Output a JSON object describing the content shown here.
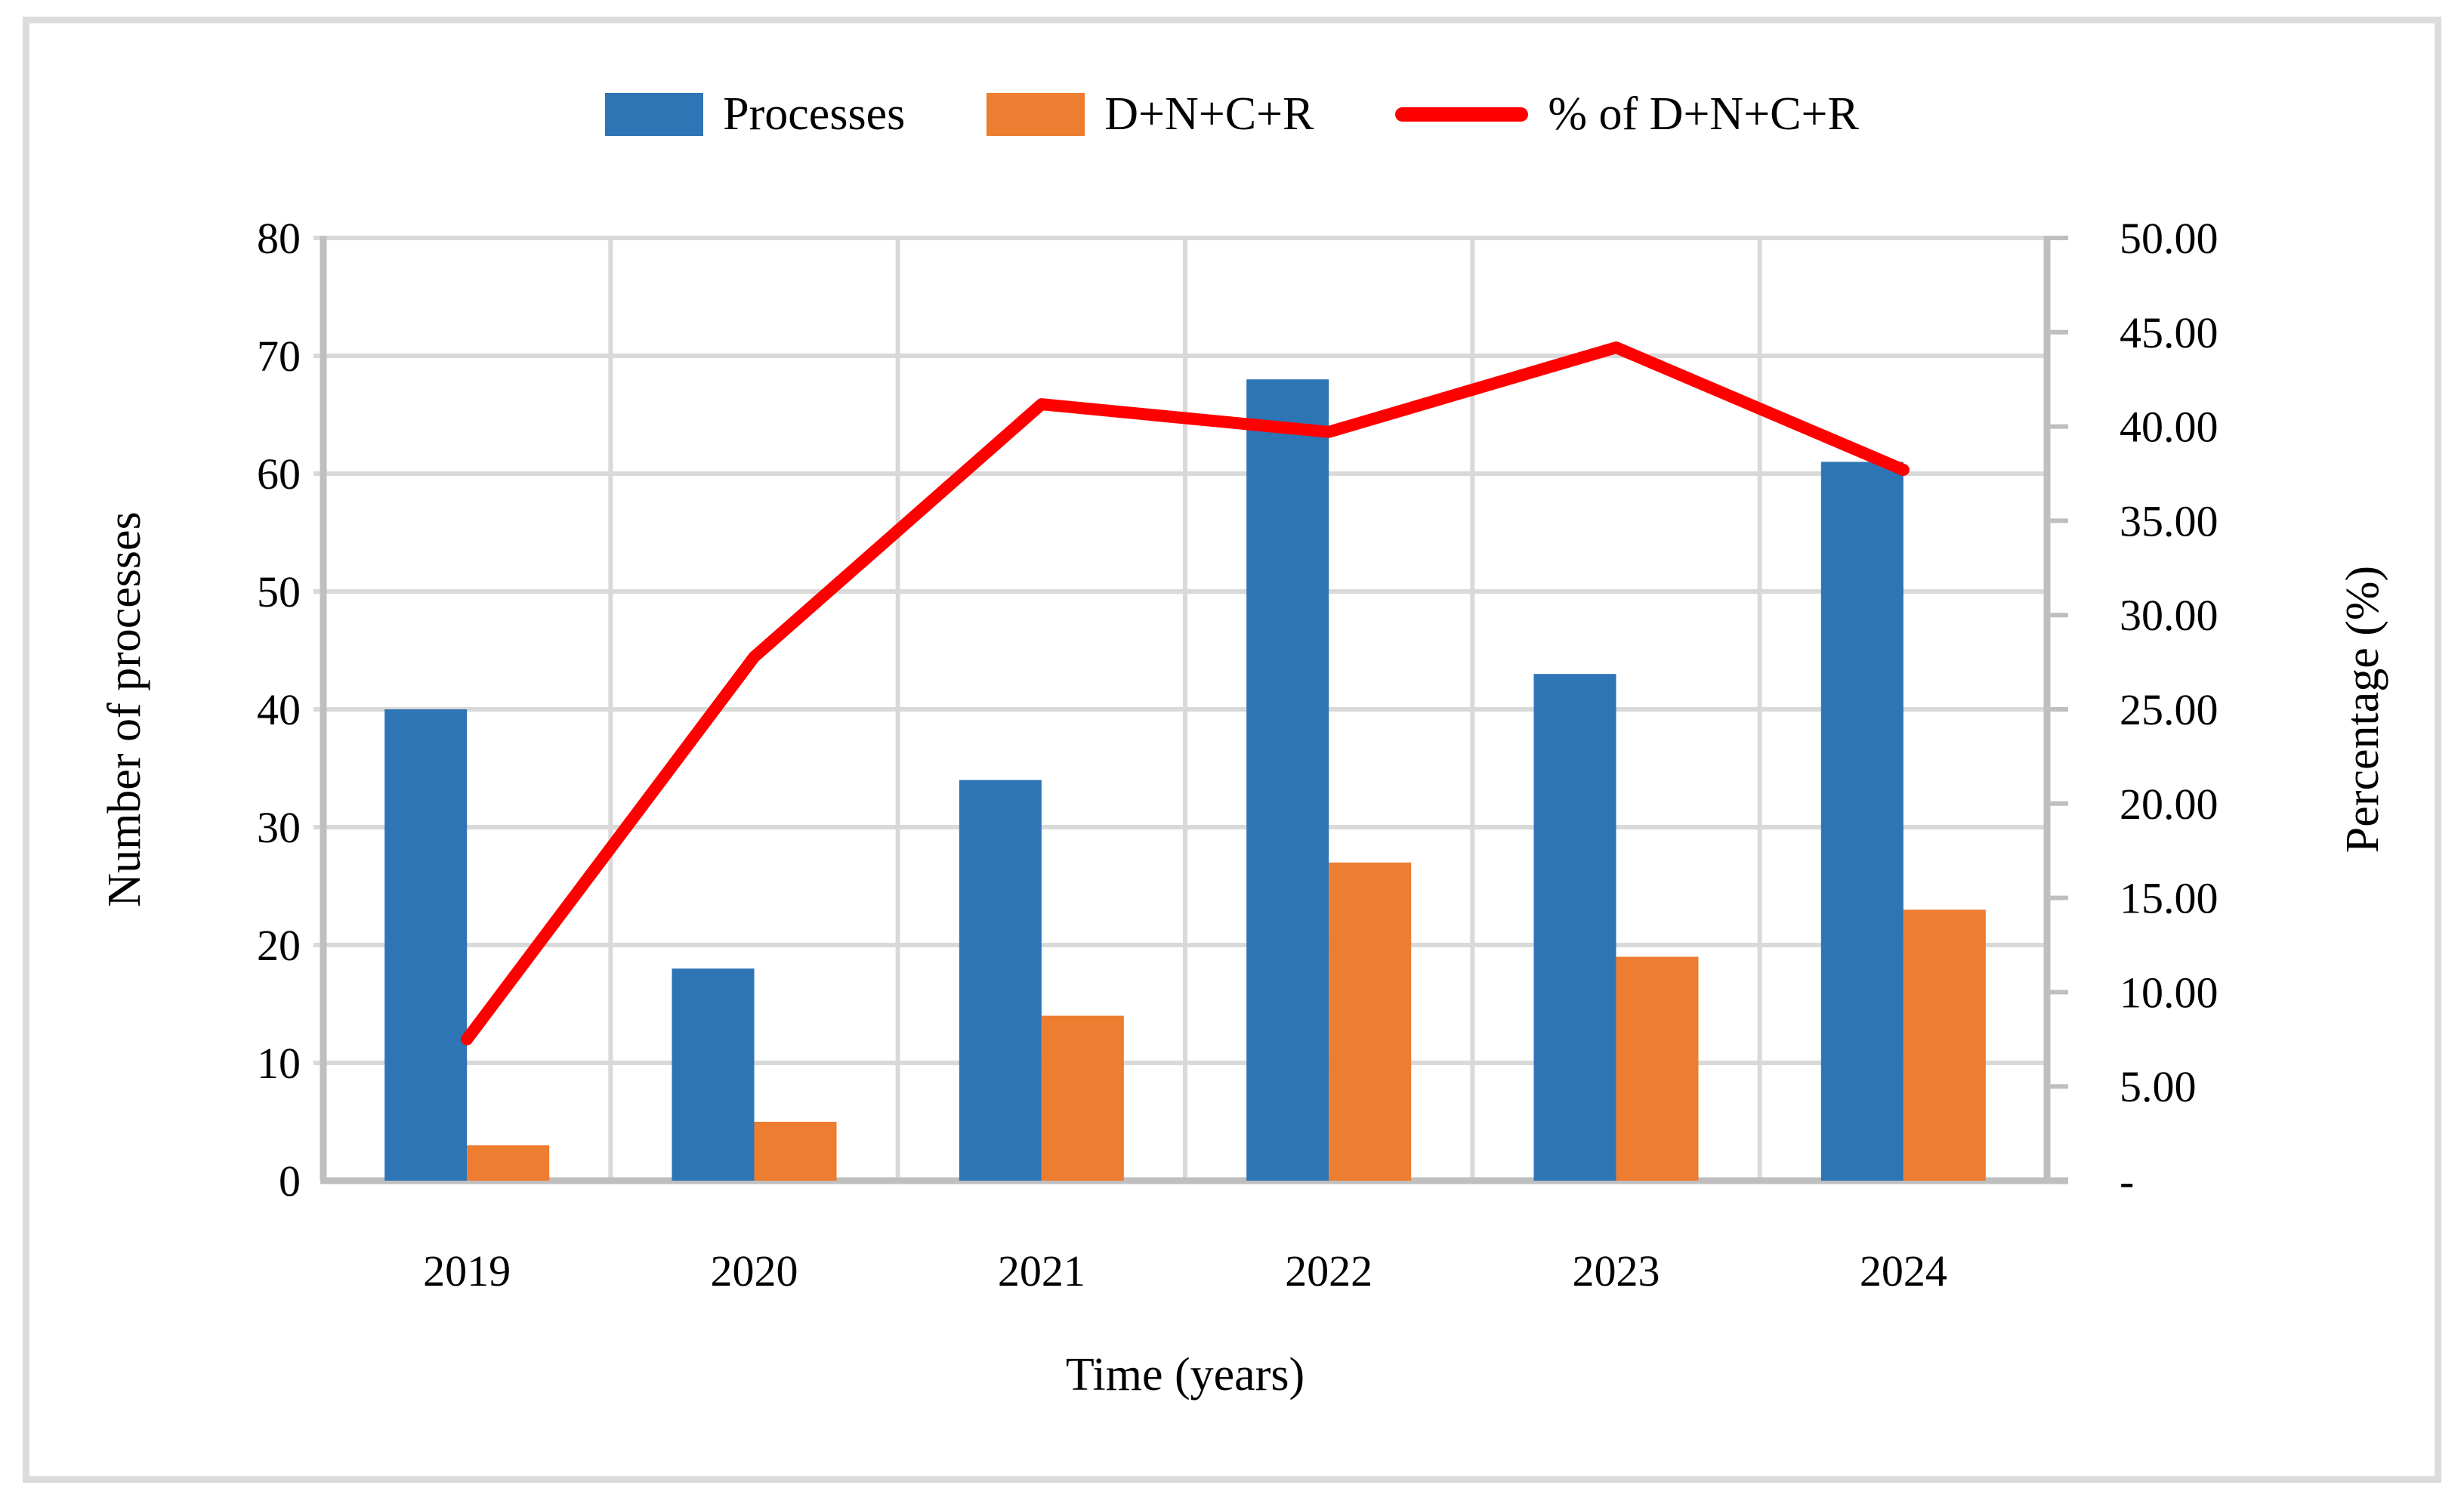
{
  "figure": {
    "background": "#FFFFFF",
    "frame_border_color": "#DCDCDC"
  },
  "legend": {
    "items": [
      {
        "label": "Processes",
        "swatch": "rect",
        "color": "#2E75B6"
      },
      {
        "label": "D+N+C+R",
        "swatch": "rect",
        "color": "#ED7D31"
      },
      {
        "label": "% of D+N+C+R",
        "swatch": "line",
        "color": "#FF0000"
      }
    ]
  },
  "chart_data": {
    "type": "bar+line combo",
    "categories": [
      "2019",
      "2020",
      "2021",
      "2022",
      "2023",
      "2024"
    ],
    "series": [
      {
        "name": "Processes",
        "type": "bar",
        "axis": "left",
        "color": "#2E75B6",
        "values": [
          40,
          18,
          34,
          68,
          43,
          61
        ]
      },
      {
        "name": "D+N+C+R",
        "type": "bar",
        "axis": "left",
        "color": "#ED7D31",
        "values": [
          3,
          5,
          14,
          27,
          19,
          23
        ]
      },
      {
        "name": "% of D+N+C+R",
        "type": "line",
        "axis": "right",
        "color": "#FF0000",
        "values": [
          7.5,
          27.78,
          41.18,
          39.71,
          44.19,
          37.7
        ]
      }
    ],
    "left_axis": {
      "title": "Number of processes",
      "min": 0,
      "max": 80,
      "step": 10,
      "tick_labels": [
        "0",
        "10",
        "20",
        "30",
        "40",
        "50",
        "60",
        "70",
        "80"
      ]
    },
    "right_axis": {
      "title": "Percentage (%)",
      "min": 0,
      "max": 50,
      "step": 5,
      "tick_labels": [
        "-",
        "5.00",
        "10.00",
        "15.00",
        "20.00",
        "25.00",
        "30.00",
        "35.00",
        "40.00",
        "45.00",
        "50.00"
      ]
    },
    "x_axis": {
      "title": "Time (years)"
    },
    "grid": {
      "horizontal": true,
      "vertical": true,
      "gridline_color": "#D9D9D9",
      "axis_line_color": "#BFBFBF"
    },
    "legend_position": "top"
  }
}
